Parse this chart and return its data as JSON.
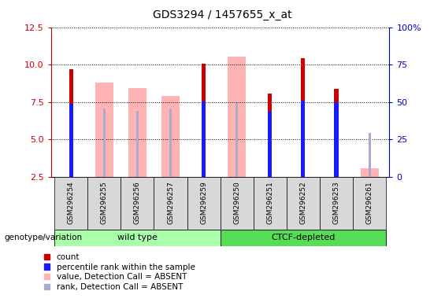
{
  "title": "GDS3294 / 1457655_x_at",
  "samples": [
    "GSM296254",
    "GSM296255",
    "GSM296256",
    "GSM296257",
    "GSM296259",
    "GSM296250",
    "GSM296251",
    "GSM296252",
    "GSM296253",
    "GSM296261"
  ],
  "groups": [
    "wild type",
    "CTCF-depleted"
  ],
  "ylim_left": [
    2.5,
    12.5
  ],
  "ylim_right": [
    0,
    100
  ],
  "yticks_left": [
    2.5,
    5.0,
    7.5,
    10.0,
    12.5
  ],
  "yticks_right": [
    0,
    25,
    50,
    75,
    100
  ],
  "red_bars": [
    9.7,
    null,
    null,
    null,
    10.05,
    null,
    8.05,
    10.45,
    8.35,
    null
  ],
  "blue_bars": [
    7.35,
    null,
    null,
    null,
    7.55,
    null,
    6.85,
    7.6,
    7.5,
    null
  ],
  "pink_bars": [
    null,
    8.8,
    8.4,
    7.9,
    null,
    10.55,
    null,
    null,
    null,
    3.05
  ],
  "light_blue_bars": [
    null,
    7.05,
    6.9,
    7.05,
    null,
    7.45,
    null,
    null,
    null,
    5.45
  ],
  "color_red": "#cc0000",
  "color_blue": "#1a1aff",
  "color_pink": "#ffb3b3",
  "color_light_blue": "#aaaacc",
  "color_group1_light": "#bbffbb",
  "color_group1_dark": "#44cc44",
  "color_group2_light": "#bbffbb",
  "color_group2_dark": "#44cc44",
  "tick_color_left": "#cc0000",
  "tick_color_right": "#0000cc",
  "legend_items": [
    {
      "label": "count",
      "color": "#cc0000"
    },
    {
      "label": "percentile rank within the sample",
      "color": "#1a1aff"
    },
    {
      "label": "value, Detection Call = ABSENT",
      "color": "#ffb3b3"
    },
    {
      "label": "rank, Detection Call = ABSENT",
      "color": "#aaaacc"
    }
  ]
}
